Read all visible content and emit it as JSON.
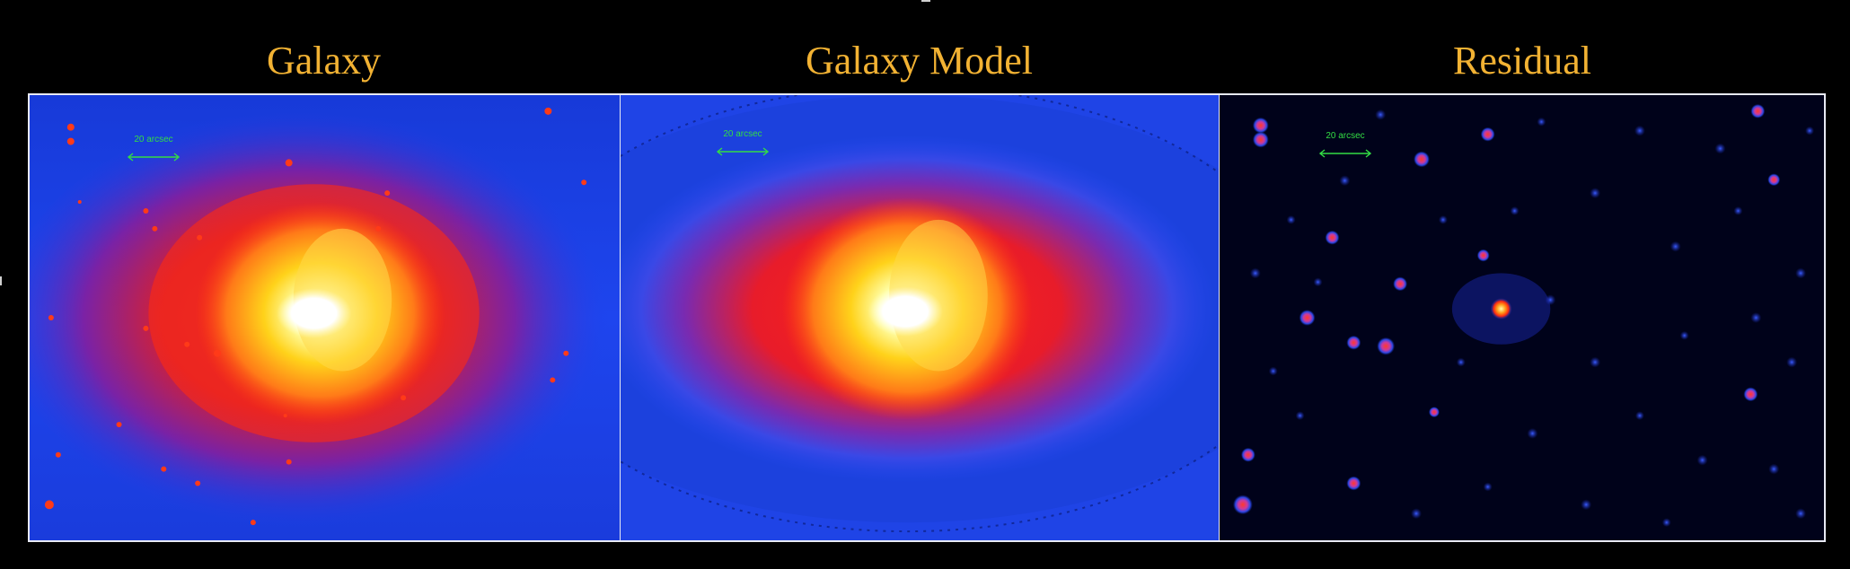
{
  "panels": [
    {
      "title": "Galaxy",
      "scale_label": "20 arcsec"
    },
    {
      "title": "Galaxy Model",
      "scale_label": "20 arcsec"
    },
    {
      "title": "Residual",
      "scale_label": "20 arcsec"
    }
  ],
  "colors": {
    "title": "#f2b233",
    "scale_bar": "#33dd44",
    "background": "#000000",
    "frame": "#e8eaf4"
  }
}
